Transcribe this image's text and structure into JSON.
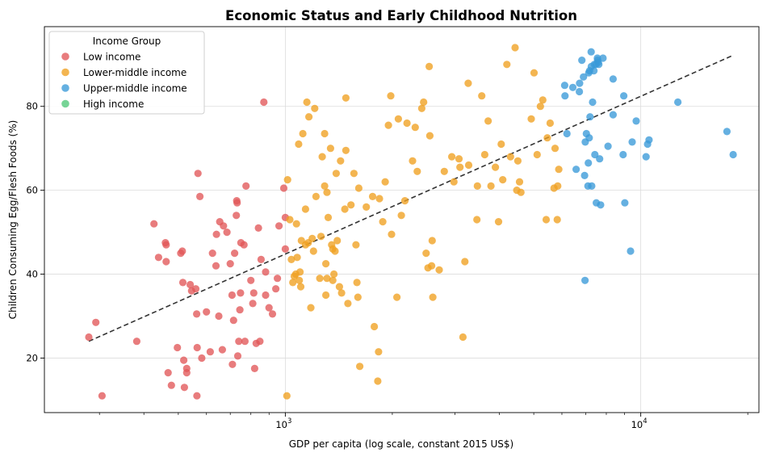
{
  "chart_data": {
    "type": "scatter",
    "title": "Economic Status and Early Childhood Nutrition",
    "xlabel": "GDP per capita (log scale, constant 2015 US$)",
    "ylabel": "Children Consuming Egg/Flesh Foods (%)",
    "x_scale": "log",
    "xlim": [
      210,
      21500
    ],
    "ylim": [
      7,
      99
    ],
    "x_major_ticks": [
      {
        "value": 1000,
        "base": "10",
        "exp": "3"
      },
      {
        "value": 10000,
        "base": "10",
        "exp": "4"
      }
    ],
    "y_ticks": [
      20,
      40,
      60,
      80
    ],
    "grid": true,
    "legend": {
      "title": "Income Group",
      "position": "upper-left",
      "entries": [
        "Low income",
        "Lower-middle income",
        "Upper-middle income",
        "High income"
      ]
    },
    "trendline": {
      "style": "dashed",
      "color": "#333333",
      "points": [
        [
          280,
          24
        ],
        [
          18000,
          92
        ]
      ]
    },
    "series": [
      {
        "name": "Low income",
        "color": "#e15759",
        "points": [
          [
            280,
            25
          ],
          [
            293,
            28.5
          ],
          [
            305,
            11
          ],
          [
            382,
            24
          ],
          [
            427,
            52
          ],
          [
            440,
            44
          ],
          [
            460,
            47.5
          ],
          [
            462,
            47
          ],
          [
            462,
            43
          ],
          [
            468,
            16.5
          ],
          [
            478,
            13.5
          ],
          [
            497,
            22.5
          ],
          [
            508,
            45
          ],
          [
            513,
            45.5
          ],
          [
            515,
            38
          ],
          [
            518,
            19.5
          ],
          [
            520,
            13
          ],
          [
            528,
            17.5
          ],
          [
            528,
            16.5
          ],
          [
            540,
            37.5
          ],
          [
            545,
            36
          ],
          [
            560,
            36.5
          ],
          [
            563,
            30.5
          ],
          [
            564,
            11
          ],
          [
            565,
            22.5
          ],
          [
            568,
            64
          ],
          [
            575,
            58.5
          ],
          [
            582,
            20
          ],
          [
            600,
            31
          ],
          [
            615,
            21.5
          ],
          [
            624,
            45
          ],
          [
            638,
            42
          ],
          [
            640,
            49.5
          ],
          [
            650,
            30
          ],
          [
            654,
            52.5
          ],
          [
            665,
            22
          ],
          [
            670,
            51.5
          ],
          [
            685,
            50
          ],
          [
            700,
            42.5
          ],
          [
            708,
            35
          ],
          [
            710,
            18.5
          ],
          [
            715,
            29
          ],
          [
            720,
            45
          ],
          [
            728,
            54
          ],
          [
            730,
            57.5
          ],
          [
            732,
            57
          ],
          [
            735,
            20.5
          ],
          [
            740,
            24
          ],
          [
            745,
            31.5
          ],
          [
            748,
            35.5
          ],
          [
            750,
            47.5
          ],
          [
            765,
            47
          ],
          [
            770,
            24
          ],
          [
            775,
            61
          ],
          [
            800,
            38.5
          ],
          [
            810,
            33
          ],
          [
            815,
            35.5
          ],
          [
            820,
            17.5
          ],
          [
            828,
            23.5
          ],
          [
            840,
            51
          ],
          [
            848,
            24
          ],
          [
            855,
            43.5
          ],
          [
            870,
            81
          ],
          [
            880,
            35
          ],
          [
            880,
            40.5
          ],
          [
            900,
            32
          ],
          [
            920,
            30.5
          ],
          [
            940,
            36.5
          ],
          [
            950,
            39
          ],
          [
            960,
            51.5
          ],
          [
            990,
            60.5
          ],
          [
            1000,
            53.5
          ],
          [
            1000,
            46
          ]
        ]
      },
      {
        "name": "Lower-middle income",
        "color": "#f0a020",
        "points": [
          [
            1010,
            11
          ],
          [
            1015,
            62.5
          ],
          [
            1030,
            53
          ],
          [
            1040,
            43.5
          ],
          [
            1050,
            38
          ],
          [
            1060,
            39.5
          ],
          [
            1070,
            40
          ],
          [
            1075,
            52
          ],
          [
            1080,
            44
          ],
          [
            1090,
            71
          ],
          [
            1095,
            38.5
          ],
          [
            1100,
            40.5
          ],
          [
            1105,
            37
          ],
          [
            1110,
            48
          ],
          [
            1120,
            73.5
          ],
          [
            1140,
            55.5
          ],
          [
            1140,
            47
          ],
          [
            1150,
            81
          ],
          [
            1160,
            47.5
          ],
          [
            1165,
            77.5
          ],
          [
            1180,
            32
          ],
          [
            1190,
            48.5
          ],
          [
            1200,
            45.5
          ],
          [
            1210,
            79.5
          ],
          [
            1220,
            58.5
          ],
          [
            1250,
            39
          ],
          [
            1260,
            49
          ],
          [
            1270,
            68
          ],
          [
            1290,
            73.5
          ],
          [
            1290,
            61
          ],
          [
            1300,
            35
          ],
          [
            1300,
            42.5
          ],
          [
            1310,
            39
          ],
          [
            1310,
            59.5
          ],
          [
            1320,
            53.5
          ],
          [
            1340,
            70
          ],
          [
            1350,
            47
          ],
          [
            1360,
            46
          ],
          [
            1360,
            38.5
          ],
          [
            1370,
            40
          ],
          [
            1380,
            45.5
          ],
          [
            1390,
            64
          ],
          [
            1400,
            48
          ],
          [
            1420,
            37
          ],
          [
            1430,
            67
          ],
          [
            1440,
            35.5
          ],
          [
            1470,
            55.5
          ],
          [
            1480,
            82
          ],
          [
            1480,
            69.5
          ],
          [
            1500,
            33
          ],
          [
            1530,
            56.5
          ],
          [
            1560,
            64
          ],
          [
            1580,
            47
          ],
          [
            1590,
            38
          ],
          [
            1600,
            34.5
          ],
          [
            1610,
            60.5
          ],
          [
            1620,
            18
          ],
          [
            1690,
            56
          ],
          [
            1760,
            58.5
          ],
          [
            1780,
            27.5
          ],
          [
            1820,
            14.5
          ],
          [
            1830,
            21.5
          ],
          [
            1840,
            58
          ],
          [
            1880,
            52.5
          ],
          [
            1910,
            62
          ],
          [
            1950,
            75.5
          ],
          [
            1980,
            82.5
          ],
          [
            1990,
            49.5
          ],
          [
            2060,
            34.5
          ],
          [
            2080,
            77
          ],
          [
            2120,
            54
          ],
          [
            2170,
            57.5
          ],
          [
            2200,
            76
          ],
          [
            2280,
            67
          ],
          [
            2320,
            75
          ],
          [
            2350,
            64.5
          ],
          [
            2420,
            79.5
          ],
          [
            2450,
            81
          ],
          [
            2490,
            45
          ],
          [
            2520,
            41.5
          ],
          [
            2540,
            89.5
          ],
          [
            2550,
            73
          ],
          [
            2580,
            42
          ],
          [
            2590,
            48
          ],
          [
            2600,
            34.5
          ],
          [
            2710,
            41
          ],
          [
            2800,
            64.5
          ],
          [
            2940,
            68
          ],
          [
            2980,
            62
          ],
          [
            3080,
            67.5
          ],
          [
            3100,
            65.5
          ],
          [
            3160,
            25
          ],
          [
            3200,
            43
          ],
          [
            3270,
            85.5
          ],
          [
            3280,
            66
          ],
          [
            3460,
            53
          ],
          [
            3470,
            61
          ],
          [
            3570,
            82.5
          ],
          [
            3640,
            68.5
          ],
          [
            3720,
            76.5
          ],
          [
            3790,
            61
          ],
          [
            3900,
            65.5
          ],
          [
            3980,
            52.5
          ],
          [
            4050,
            71
          ],
          [
            4090,
            62.5
          ],
          [
            4200,
            90
          ],
          [
            4300,
            68
          ],
          [
            4430,
            94
          ],
          [
            4480,
            60
          ],
          [
            4510,
            67
          ],
          [
            4560,
            62
          ],
          [
            4600,
            59.5
          ],
          [
            4920,
            77
          ],
          [
            5010,
            88
          ],
          [
            5110,
            68.5
          ],
          [
            5220,
            80
          ],
          [
            5300,
            81.5
          ],
          [
            5420,
            53
          ],
          [
            5460,
            72.5
          ],
          [
            5560,
            76
          ],
          [
            5700,
            60.5
          ],
          [
            5740,
            70
          ],
          [
            5820,
            53
          ],
          [
            5840,
            61
          ],
          [
            5880,
            65
          ]
        ]
      },
      {
        "name": "Upper-middle income",
        "color": "#3a9ad9",
        "points": [
          [
            6110,
            85
          ],
          [
            6120,
            82.5
          ],
          [
            6200,
            73.5
          ],
          [
            6440,
            84.5
          ],
          [
            6580,
            65
          ],
          [
            6720,
            83.5
          ],
          [
            6730,
            85.5
          ],
          [
            6830,
            91
          ],
          [
            6900,
            87
          ],
          [
            6950,
            63.5
          ],
          [
            6970,
            38.5
          ],
          [
            6980,
            71.5
          ],
          [
            7030,
            73.5
          ],
          [
            7100,
            61
          ],
          [
            7120,
            66.5
          ],
          [
            7140,
            88
          ],
          [
            7160,
            72.5
          ],
          [
            7180,
            88.5
          ],
          [
            7200,
            77.5
          ],
          [
            7250,
            93
          ],
          [
            7260,
            89.5
          ],
          [
            7280,
            61
          ],
          [
            7320,
            81
          ],
          [
            7380,
            88.5
          ],
          [
            7400,
            90
          ],
          [
            7430,
            68.5
          ],
          [
            7480,
            90
          ],
          [
            7500,
            57
          ],
          [
            7550,
            91.5
          ],
          [
            7560,
            91
          ],
          [
            7590,
            90.5
          ],
          [
            7620,
            90
          ],
          [
            7660,
            67.5
          ],
          [
            7710,
            56.5
          ],
          [
            7830,
            91.5
          ],
          [
            8090,
            70.5
          ],
          [
            8360,
            86.5
          ],
          [
            8360,
            78
          ],
          [
            8920,
            68.5
          ],
          [
            8960,
            82.5
          ],
          [
            9020,
            57
          ],
          [
            9360,
            45.5
          ],
          [
            9460,
            71.5
          ],
          [
            9710,
            76.5
          ],
          [
            10350,
            68
          ],
          [
            10450,
            71
          ],
          [
            10550,
            72
          ],
          [
            12720,
            81
          ],
          [
            17480,
            74
          ],
          [
            18200,
            68.5
          ]
        ]
      },
      {
        "name": "High income",
        "color": "#50c878",
        "points": []
      }
    ]
  }
}
